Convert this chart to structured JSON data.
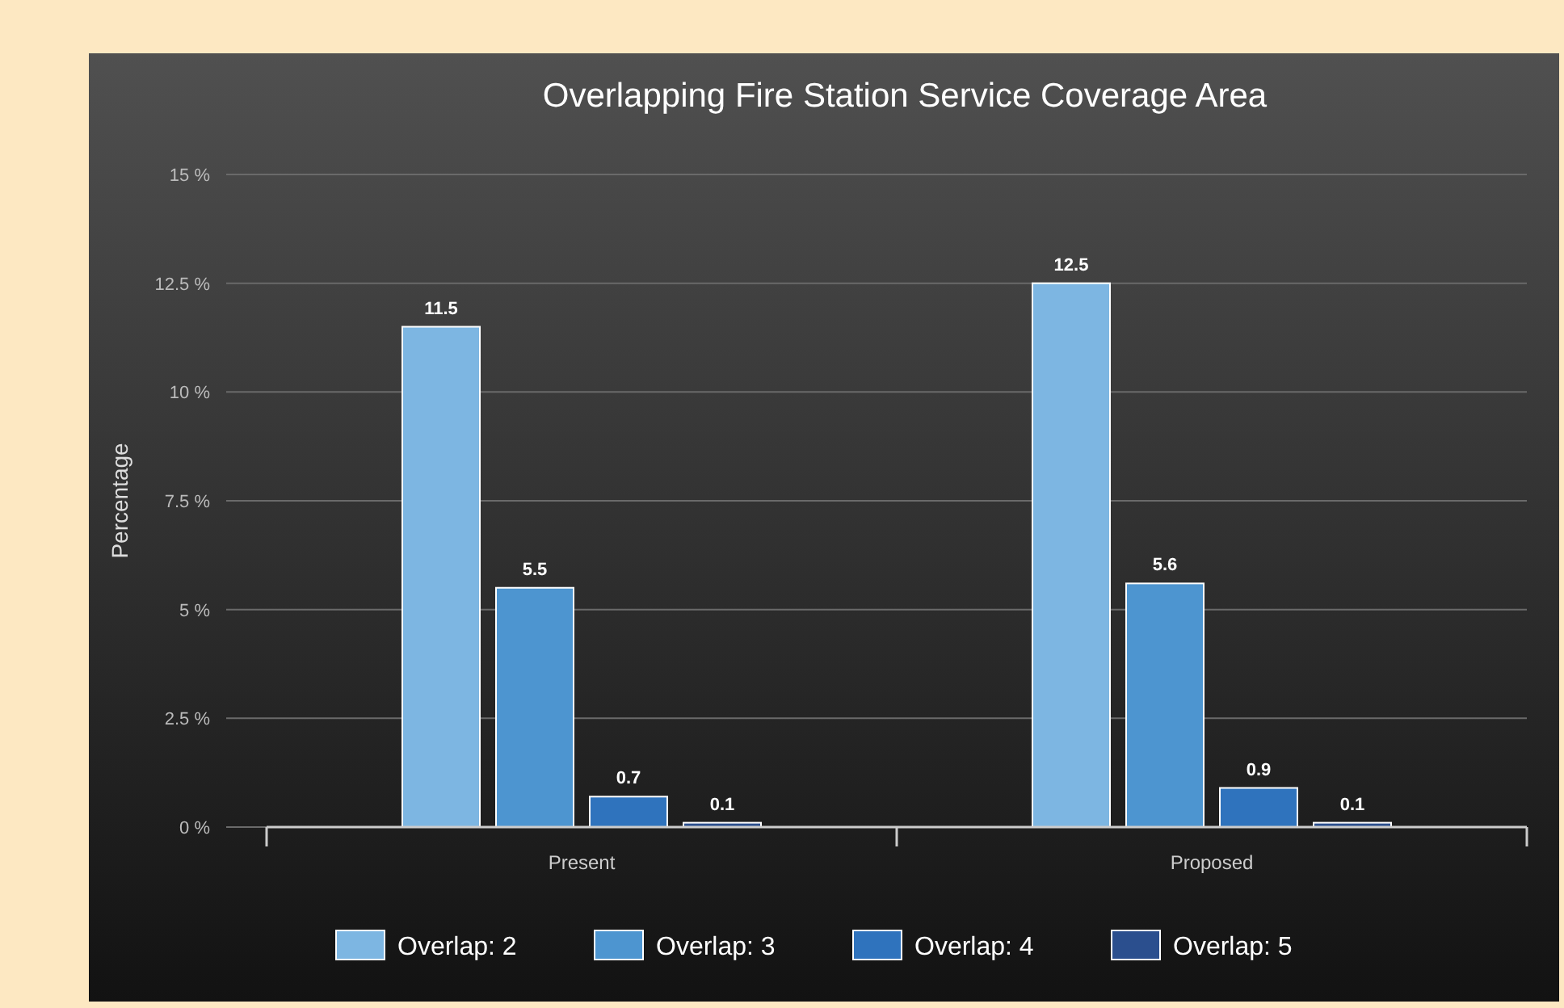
{
  "chart_data": {
    "type": "bar",
    "title": "Overlapping Fire Station Service Coverage Area",
    "ylabel": "Percentage",
    "categories": [
      "Present",
      "Proposed"
    ],
    "series": [
      {
        "name": "Overlap: 2",
        "color": "#7db6e2",
        "values": [
          11.5,
          12.5
        ]
      },
      {
        "name": "Overlap: 3",
        "color": "#4d95d0",
        "values": [
          5.5,
          5.6
        ]
      },
      {
        "name": "Overlap: 4",
        "color": "#2f73bd",
        "values": [
          0.7,
          0.9
        ]
      },
      {
        "name": "Overlap: 5",
        "color": "#2b4f8e",
        "values": [
          0.1,
          0.1
        ]
      }
    ],
    "ylim": [
      0,
      15
    ],
    "yticks": [
      {
        "value": 0,
        "label": "0 %"
      },
      {
        "value": 2.5,
        "label": "2.5 %"
      },
      {
        "value": 5,
        "label": "5 %"
      },
      {
        "value": 7.5,
        "label": "7.5 %"
      },
      {
        "value": 10,
        "label": "10 %"
      },
      {
        "value": 12.5,
        "label": "12.5 %"
      },
      {
        "value": 15,
        "label": "15 %"
      }
    ],
    "grid": "y",
    "data_labels": true,
    "legend": "bottom"
  }
}
